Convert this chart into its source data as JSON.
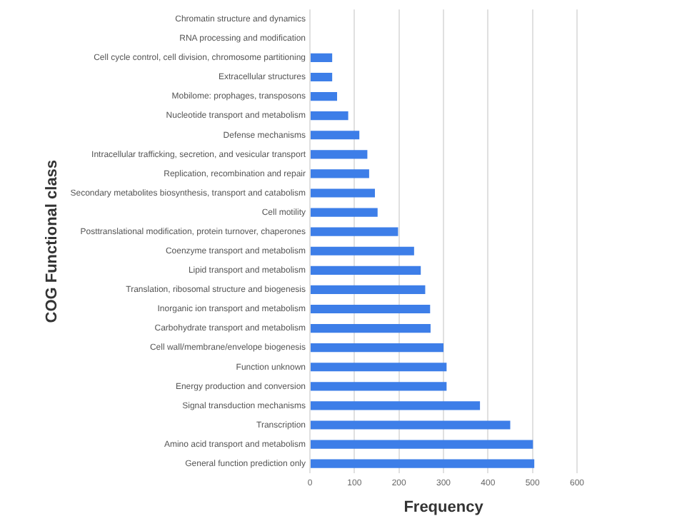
{
  "chart_data": {
    "type": "bar",
    "orientation": "horizontal",
    "xlabel": "Frequency",
    "ylabel": "COG Functional class",
    "categories": [
      "Chromatin structure and dynamics",
      "RNA processing and modification",
      "Cell cycle control, cell division, chromosome partitioning",
      "Extracellular structures",
      "Mobilome: prophages, transposons",
      "Nucleotide transport and metabolism",
      "Defense mechanisms",
      "Intracellular trafficking, secretion, and vesicular transport",
      "Replication, recombination and repair",
      "Secondary metabolites biosynthesis, transport and catabolism",
      "Cell motility",
      "Posttranslational modification, protein turnover, chaperones",
      "Coenzyme transport and metabolism",
      "Lipid transport and metabolism",
      "Translation, ribosomal structure and biogenesis",
      "Inorganic ion transport and metabolism",
      "Carbohydrate transport and metabolism",
      "Cell wall/membrane/envelope biogenesis",
      "Function unknown",
      "Energy production and conversion",
      "Signal transduction mechanisms",
      "Transcription",
      "Amino acid transport and metabolism",
      "General function prediction only"
    ],
    "values": [
      0,
      0,
      50,
      50,
      61,
      86,
      111,
      129,
      133,
      146,
      152,
      198,
      234,
      249,
      259,
      270,
      271,
      300,
      307,
      307,
      382,
      450,
      501,
      504
    ],
    "color": "#3d7ee8",
    "xlim": [
      0,
      600
    ],
    "xticks": [
      0,
      100,
      200,
      300,
      400,
      500,
      600
    ],
    "grid": "x",
    "legend": false
  }
}
